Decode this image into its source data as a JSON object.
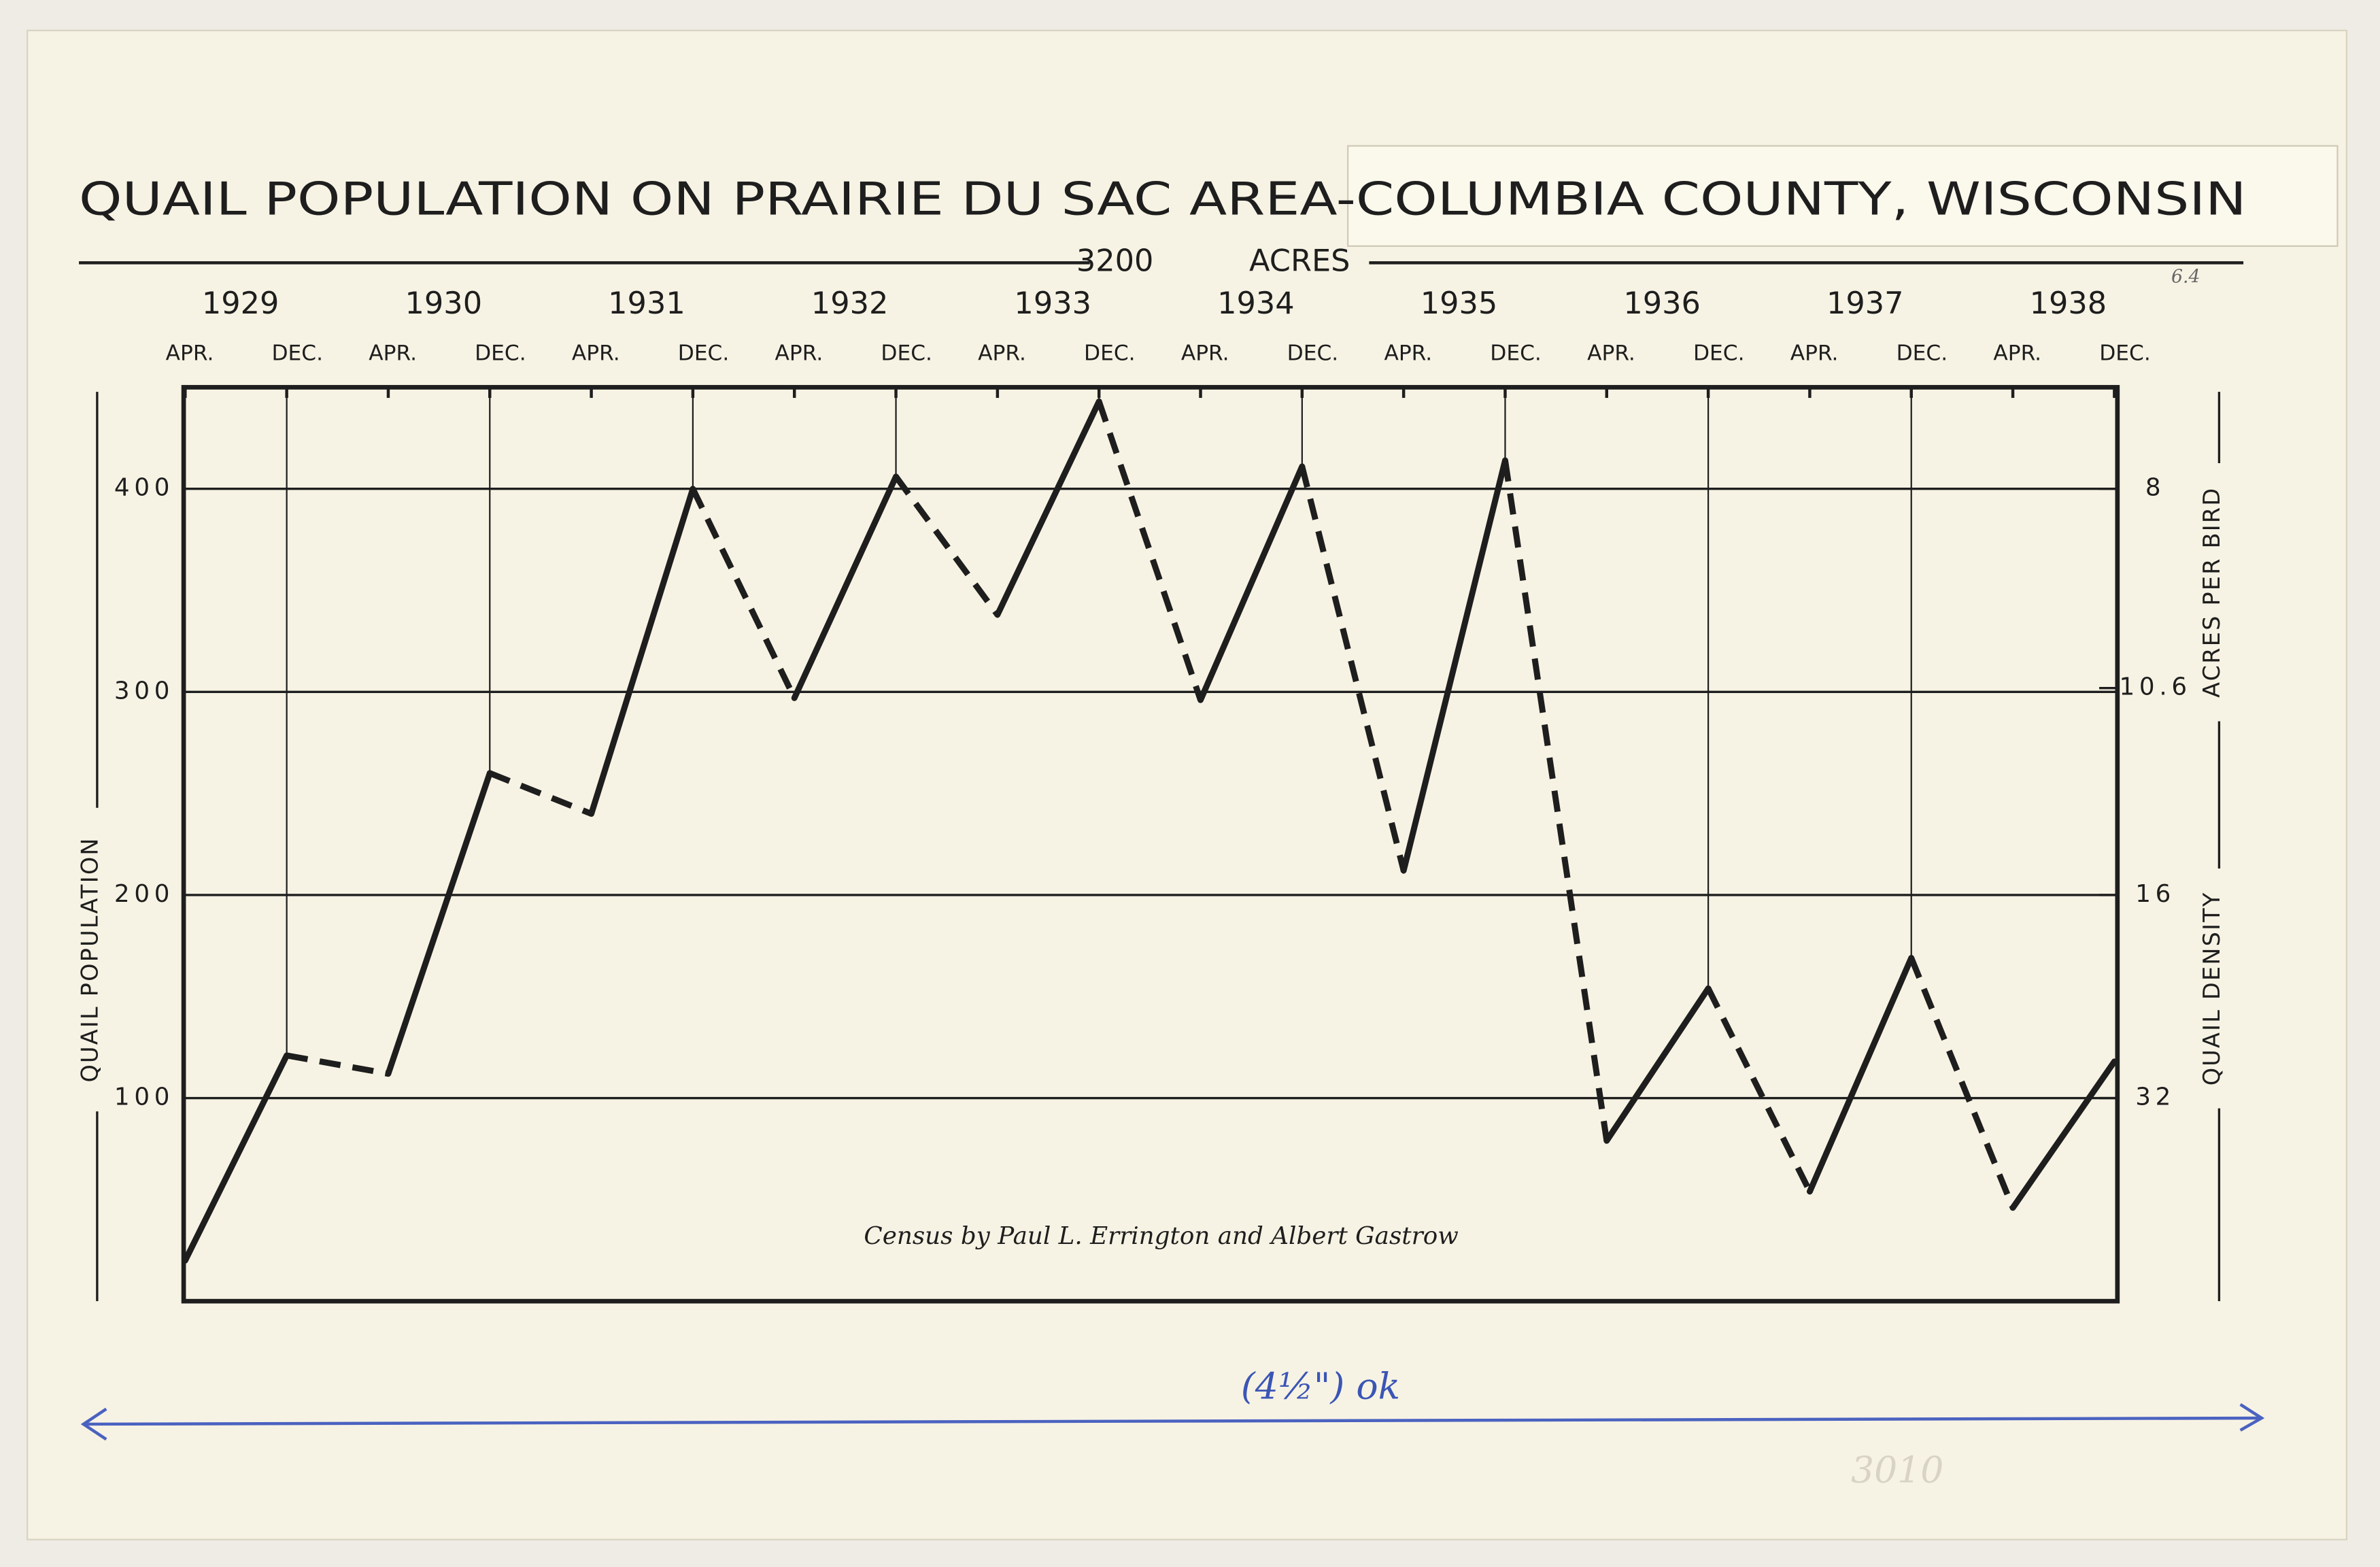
{
  "chart_data": {
    "type": "line",
    "title": "QUAIL POPULATION ON PRAIRIE DU SAC AREA-COLUMBIA COUNTY, WISCONSIN",
    "area": 3200,
    "area_unit": "ACRES",
    "years": [
      "1929",
      "1930",
      "1931",
      "1932",
      "1933",
      "1934",
      "1935",
      "1936",
      "1937",
      "1938"
    ],
    "categories": [
      "APR.",
      "DEC.",
      "APR.",
      "DEC.",
      "APR.",
      "DEC.",
      "APR.",
      "DEC.",
      "APR.",
      "DEC.",
      "APR.",
      "DEC.",
      "APR.",
      "DEC.",
      "APR.",
      "DEC.",
      "APR.",
      "DEC.",
      "APR.",
      "DEC."
    ],
    "values": [
      20,
      121,
      112,
      260,
      240,
      400,
      297,
      406,
      338,
      443,
      296,
      411,
      212,
      414,
      79,
      154,
      54,
      169,
      46,
      118
    ],
    "color": "#1e1e1e",
    "dashed_odd_segments": true,
    "ylabel": "QUAIL POPULATION",
    "y2label": "ACRES PER BIRD",
    "y2label_2": "QUAIL DENSITY",
    "ylim": [
      0,
      450
    ],
    "yticks": [
      100,
      200,
      300,
      400
    ],
    "y2scale": "reciprocal",
    "y2ticks": [
      8,
      10.6,
      16,
      32
    ],
    "grid": true,
    "annotations": [
      "Census by Paul L. Errington and Albert Gastrow",
      "6.4",
      "(4½\") ok",
      "3010"
    ]
  }
}
